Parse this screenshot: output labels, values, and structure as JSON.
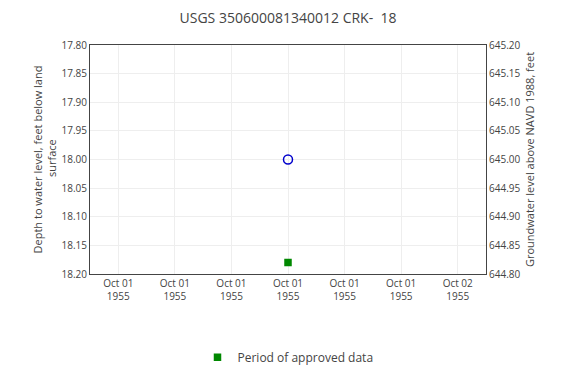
{
  "chart_data": {
    "type": "scatter",
    "title": "USGS 350600081340012 CRK-  18",
    "categories": [
      "Oct 01\n1955",
      "Oct 01\n1955",
      "Oct 01\n1955",
      "Oct 01\n1955",
      "Oct 01\n1955",
      "Oct 01\n1955",
      "Oct 02\n1955"
    ],
    "y_label": "Depth to water level, feet below land\n surface",
    "y2_label": "Groundwater level above NAVD 1988, feet",
    "ylim": [
      18.2,
      17.8
    ],
    "yticks": [
      {
        "value": 17.8,
        "label": "17.80"
      },
      {
        "value": 17.85,
        "label": "17.85"
      },
      {
        "value": 17.9,
        "label": "17.90"
      },
      {
        "value": 17.95,
        "label": "17.95"
      },
      {
        "value": 18.0,
        "label": "18.00"
      },
      {
        "value": 18.05,
        "label": "18.05"
      },
      {
        "value": 18.1,
        "label": "18.10"
      },
      {
        "value": 18.15,
        "label": "18.15"
      },
      {
        "value": 18.2,
        "label": "18.20"
      }
    ],
    "y2lim": [
      644.8,
      645.2
    ],
    "y2ticks": [
      {
        "value": 644.8,
        "label": "644.80"
      },
      {
        "value": 644.85,
        "label": "644.85"
      },
      {
        "value": 644.9,
        "label": "644.90"
      },
      {
        "value": 644.95,
        "label": "644.95"
      },
      {
        "value": 645.0,
        "label": "645.00"
      },
      {
        "value": 645.05,
        "label": "645.05"
      },
      {
        "value": 645.1,
        "label": "645.10"
      },
      {
        "value": 645.15,
        "label": "645.15"
      },
      {
        "value": 645.2,
        "label": "645.20"
      }
    ],
    "series": [
      {
        "color": "#0000cc",
        "marker": "open circle",
        "values": [
          null,
          null,
          null,
          18.0,
          null,
          null,
          null
        ]
      },
      {
        "name": "Period of approved data",
        "color": "#008800",
        "marker": "square",
        "values": [
          null,
          null,
          null,
          18.18,
          null,
          null,
          null
        ]
      }
    ],
    "grid": true,
    "legend": "bottom"
  }
}
